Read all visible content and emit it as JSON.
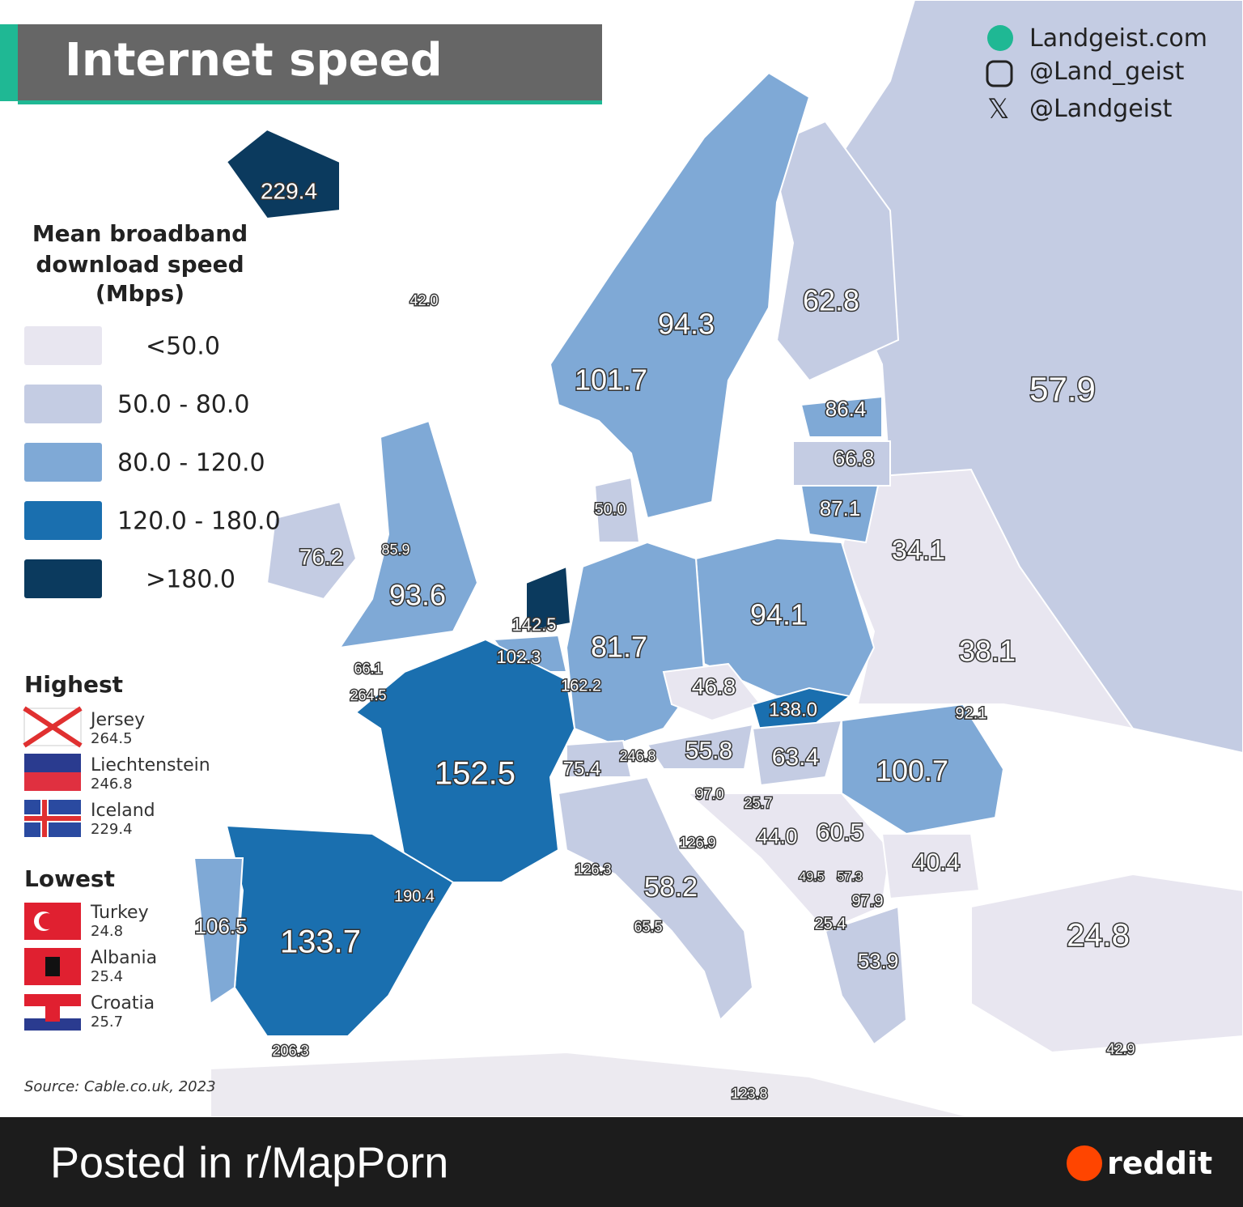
{
  "header": {
    "title": "Internet speed"
  },
  "social": [
    "Landgeist.com",
    "@Land_geist",
    "@Landgeist"
  ],
  "legend": {
    "title": [
      "Mean broadband",
      "download speed",
      "(Mbps)"
    ],
    "items": [
      {
        "label": "<50.0",
        "color": "#e8e6f0"
      },
      {
        "label": "50.0 - 80.0",
        "color": "#c4cce3"
      },
      {
        "label": "80.0 - 120.0",
        "color": "#7fa9d6"
      },
      {
        "label": "120.0 - 180.0",
        "color": "#1a6faf"
      },
      {
        "label": ">180.0",
        "color": "#0b3a5e"
      }
    ]
  },
  "highest": {
    "title": "Highest",
    "items": [
      {
        "name": "Jersey",
        "value": "264.5"
      },
      {
        "name": "Liechtenstein",
        "value": "246.8"
      },
      {
        "name": "Iceland",
        "value": "229.4"
      }
    ]
  },
  "lowest": {
    "title": "Lowest",
    "items": [
      {
        "name": "Turkey",
        "value": "24.8"
      },
      {
        "name": "Albania",
        "value": "25.4"
      },
      {
        "name": "Croatia",
        "value": "25.7"
      }
    ]
  },
  "source": "Source: Cable.co.uk, 2023",
  "map": {
    "labels": [
      "229.4",
      "42.0",
      "62.8",
      "94.3",
      "101.7",
      "57.9",
      "86.4",
      "66.8",
      "50.0",
      "87.1",
      "34.1",
      "76.2",
      "85.9",
      "93.6",
      "142.5",
      "94.1",
      "81.7",
      "102.3",
      "38.1",
      "66.1",
      "264.5",
      "162.2",
      "46.8",
      "138.0",
      "92.1",
      "55.8",
      "63.4",
      "246.8",
      "75.4",
      "152.5",
      "100.7",
      "97.0",
      "25.7",
      "44.0",
      "60.5",
      "126.9",
      "40.4",
      "126.3",
      "49.5",
      "57.3",
      "58.2",
      "190.4",
      "97.9",
      "106.5",
      "65.5",
      "25.4",
      "133.7",
      "24.8",
      "53.9",
      "206.3",
      "42.9",
      "123.8"
    ]
  },
  "footer": {
    "posted": "Posted in r/MapPorn",
    "brand": "reddit"
  }
}
